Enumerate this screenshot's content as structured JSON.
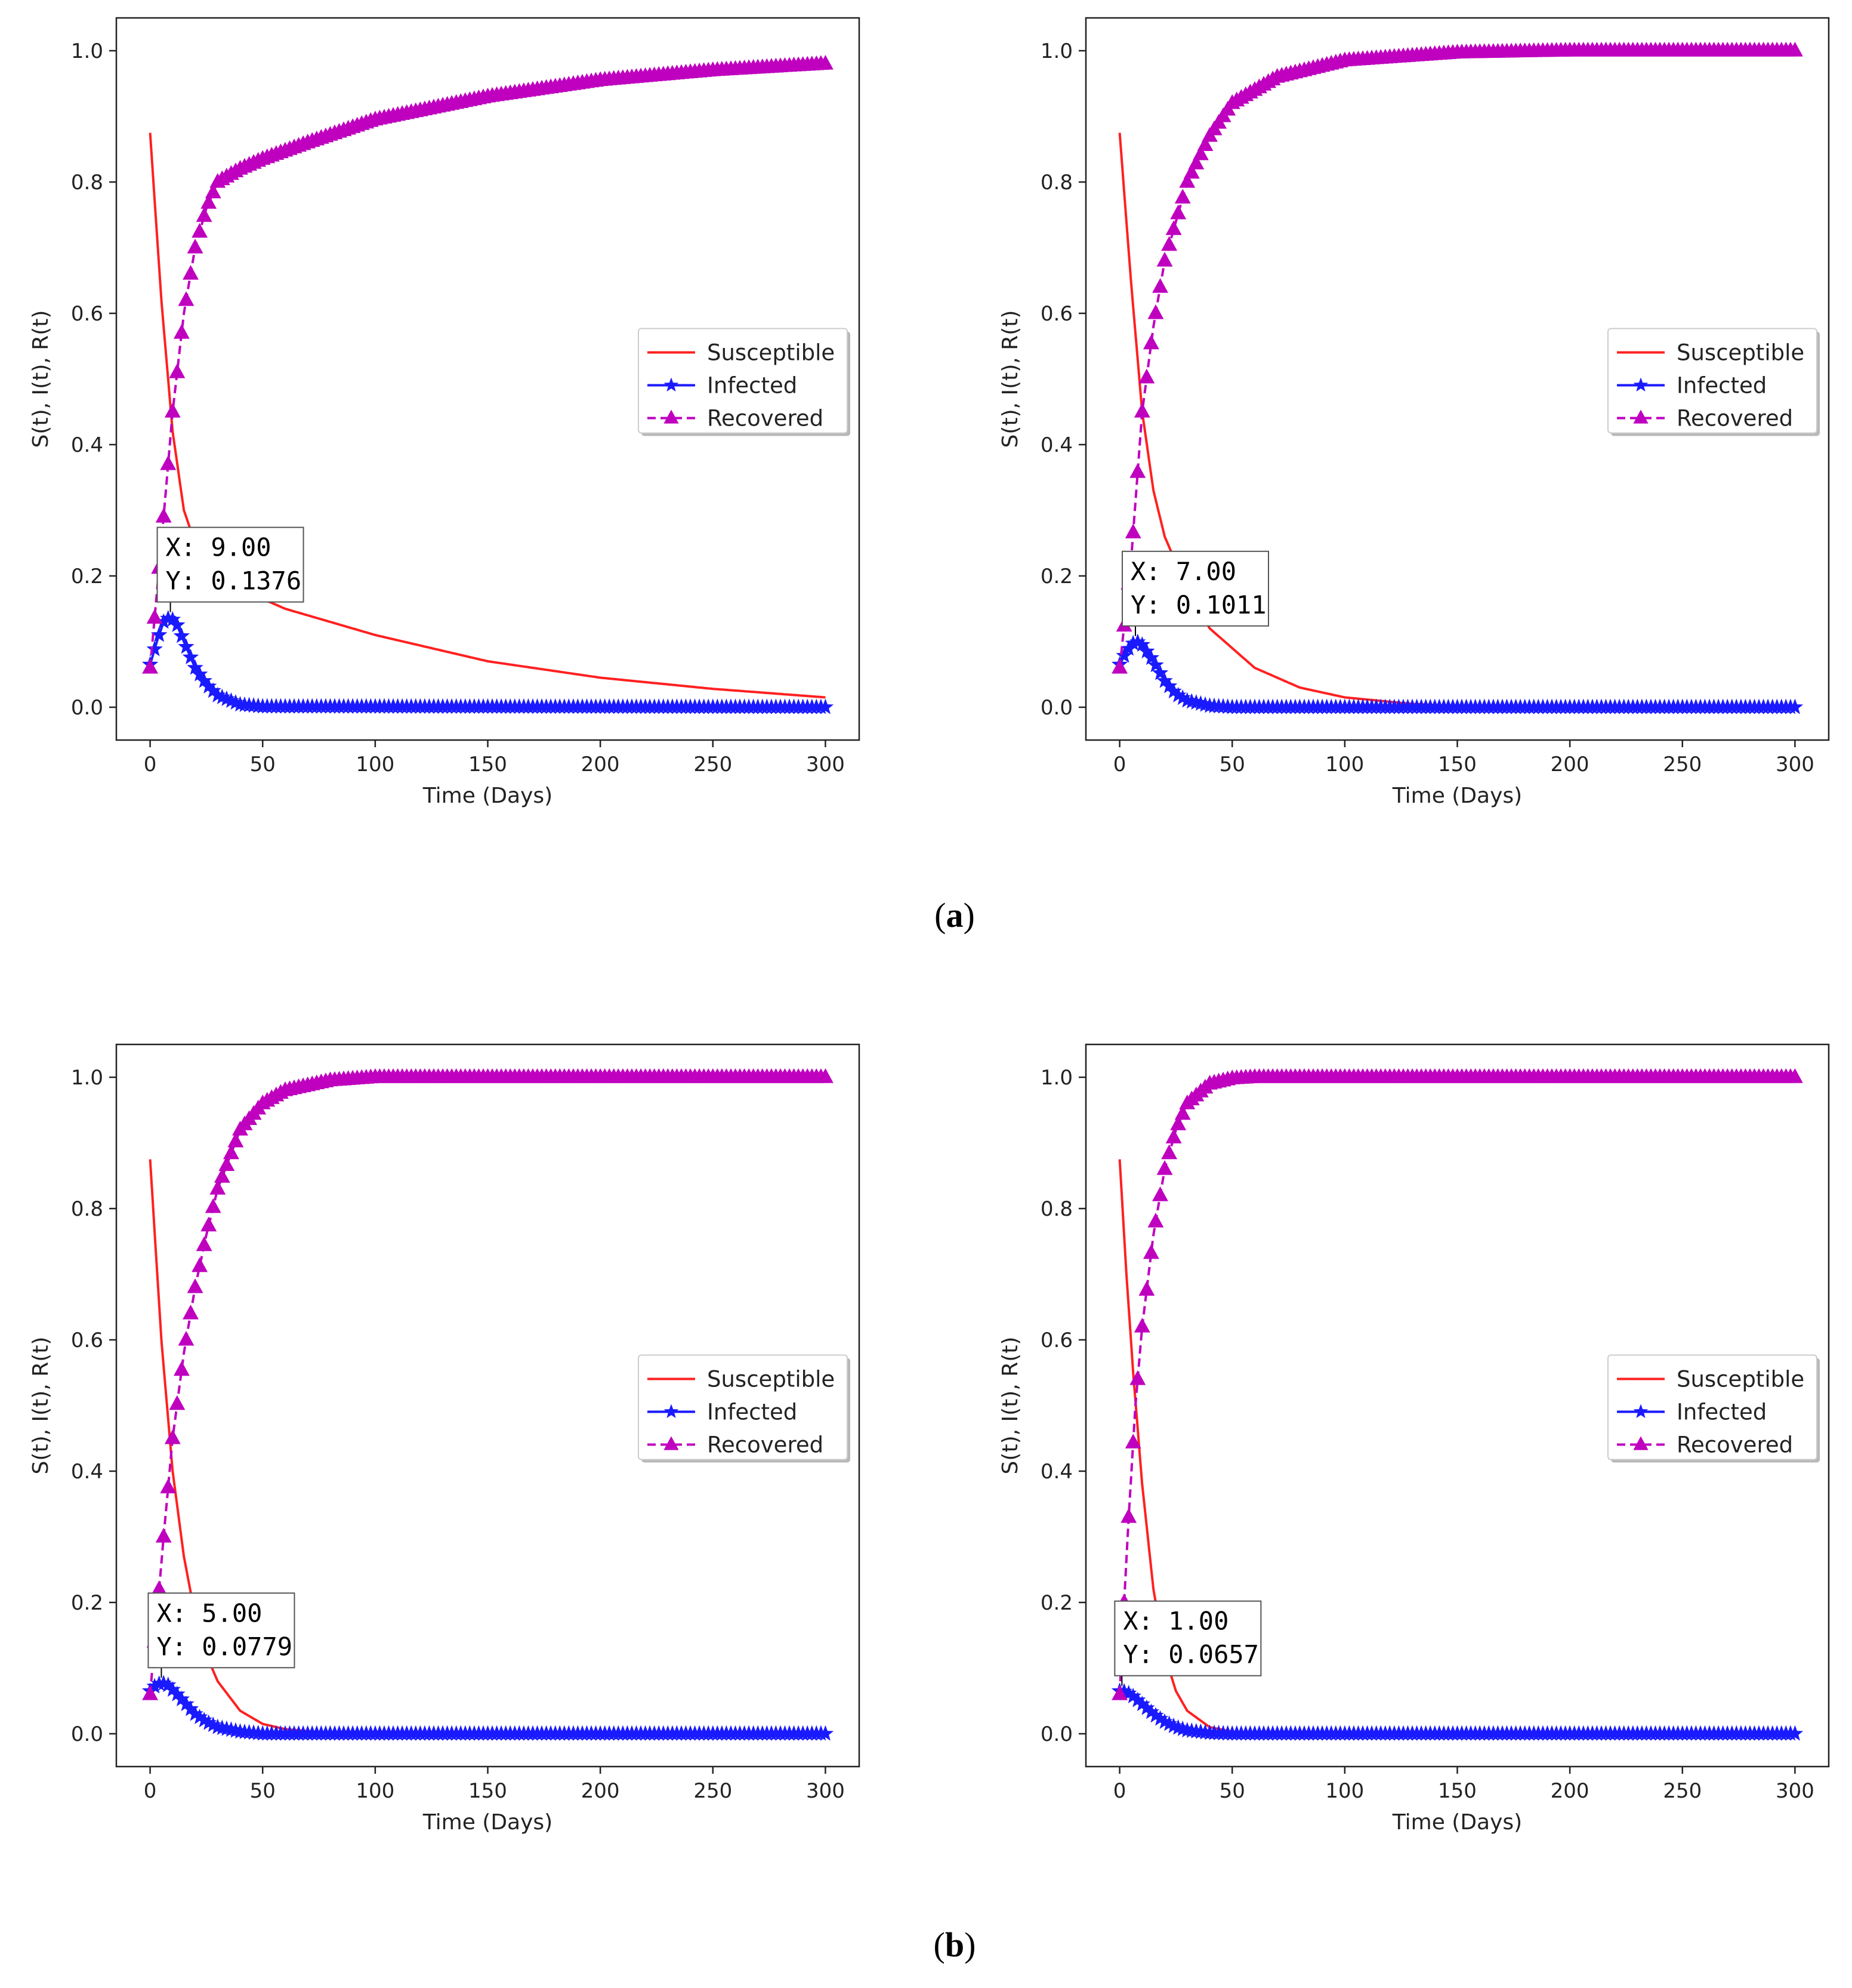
{
  "colors": {
    "susceptible": "#ff2020",
    "infected": "#1a1aff",
    "recovered": "#bf00bf",
    "axes": "#222222"
  },
  "captions": [
    {
      "open": "(",
      "letter": "a",
      "close": ")"
    },
    {
      "open": "(",
      "letter": "b",
      "close": ")"
    }
  ],
  "chart_data": [
    {
      "type": "line",
      "xlabel": "Time (Days)",
      "ylabel": "S(t), I(t), R(t)",
      "xlim": [
        -15,
        315
      ],
      "ylim": [
        -0.05,
        1.05
      ],
      "xticks": [
        0,
        50,
        100,
        150,
        200,
        250,
        300
      ],
      "yticks": [
        0.0,
        0.2,
        0.4,
        0.6,
        0.8,
        1.0
      ],
      "xtick_labels": [
        "0",
        "50",
        "100",
        "150",
        "200",
        "250",
        "300"
      ],
      "ytick_labels": [
        "0.0",
        "0.2",
        "0.4",
        "0.6",
        "0.8",
        "1.0"
      ],
      "legend": {
        "position": "center-right",
        "entries": [
          "Susceptible",
          "Infected",
          "Recovered"
        ]
      },
      "series": [
        {
          "name": "Susceptible",
          "style": "solid",
          "x": [
            0,
            5,
            10,
            15,
            20,
            30,
            40,
            60,
            80,
            100,
            150,
            200,
            250,
            300
          ],
          "y": [
            0.875,
            0.62,
            0.42,
            0.3,
            0.25,
            0.2,
            0.18,
            0.15,
            0.13,
            0.11,
            0.07,
            0.045,
            0.028,
            0.015
          ]
        },
        {
          "name": "Infected",
          "style": "star",
          "x": [
            0,
            3,
            6,
            9,
            12,
            15,
            20,
            25,
            30,
            40,
            50,
            300
          ],
          "y": [
            0.065,
            0.1,
            0.13,
            0.1376,
            0.125,
            0.1,
            0.06,
            0.035,
            0.018,
            0.004,
            0.001,
            0.0
          ]
        },
        {
          "name": "Recovered",
          "style": "triangle-dashed",
          "x": [
            0,
            5,
            10,
            15,
            20,
            25,
            30,
            40,
            50,
            70,
            100,
            150,
            200,
            250,
            300
          ],
          "y": [
            0.06,
            0.25,
            0.45,
            0.6,
            0.7,
            0.76,
            0.8,
            0.82,
            0.835,
            0.86,
            0.895,
            0.93,
            0.955,
            0.97,
            0.98
          ]
        }
      ],
      "annotation": {
        "x": 9,
        "y": 0.1376,
        "label_x": "X: 9.00",
        "label_y": "Y: 0.1376"
      }
    },
    {
      "type": "line",
      "xlabel": "Time (Days)",
      "ylabel": "S(t), I(t), R(t)",
      "xlim": [
        -15,
        315
      ],
      "ylim": [
        -0.05,
        1.05
      ],
      "xticks": [
        0,
        50,
        100,
        150,
        200,
        250,
        300
      ],
      "yticks": [
        0.0,
        0.2,
        0.4,
        0.6,
        0.8,
        1.0
      ],
      "xtick_labels": [
        "0",
        "50",
        "100",
        "150",
        "200",
        "250",
        "300"
      ],
      "ytick_labels": [
        "0.0",
        "0.2",
        "0.4",
        "0.6",
        "0.8",
        "1.0"
      ],
      "legend": {
        "position": "center-right",
        "entries": [
          "Susceptible",
          "Infected",
          "Recovered"
        ]
      },
      "series": [
        {
          "name": "Susceptible",
          "style": "solid",
          "x": [
            0,
            5,
            10,
            15,
            20,
            30,
            40,
            60,
            80,
            100,
            130,
            150,
            200,
            300
          ],
          "y": [
            0.875,
            0.65,
            0.45,
            0.33,
            0.26,
            0.18,
            0.12,
            0.06,
            0.03,
            0.015,
            0.005,
            0.002,
            0.0,
            0.0
          ]
        },
        {
          "name": "Infected",
          "style": "star",
          "x": [
            0,
            3,
            7,
            10,
            15,
            20,
            25,
            30,
            40,
            50,
            300
          ],
          "y": [
            0.065,
            0.085,
            0.1011,
            0.095,
            0.07,
            0.04,
            0.02,
            0.01,
            0.002,
            0.0,
            0.0
          ]
        },
        {
          "name": "Recovered",
          "style": "triangle-dashed",
          "x": [
            0,
            5,
            10,
            15,
            20,
            30,
            40,
            50,
            70,
            100,
            150,
            200,
            300
          ],
          "y": [
            0.06,
            0.22,
            0.45,
            0.58,
            0.68,
            0.8,
            0.87,
            0.92,
            0.96,
            0.985,
            0.997,
            1.0,
            1.0
          ]
        }
      ],
      "annotation": {
        "x": 7,
        "y": 0.1011,
        "label_x": "X: 7.00",
        "label_y": "Y: 0.1011"
      }
    },
    {
      "type": "line",
      "xlabel": "Time (Days)",
      "ylabel": "S(t), I(t), R(t)",
      "xlim": [
        -15,
        315
      ],
      "ylim": [
        -0.05,
        1.05
      ],
      "xticks": [
        0,
        50,
        100,
        150,
        200,
        250,
        300
      ],
      "yticks": [
        0.0,
        0.2,
        0.4,
        0.6,
        0.8,
        1.0
      ],
      "xtick_labels": [
        "0",
        "50",
        "100",
        "150",
        "200",
        "250",
        "300"
      ],
      "ytick_labels": [
        "0.0",
        "0.2",
        "0.4",
        "0.6",
        "0.8",
        "1.0"
      ],
      "legend": {
        "position": "center-right",
        "entries": [
          "Susceptible",
          "Infected",
          "Recovered"
        ]
      },
      "series": [
        {
          "name": "Susceptible",
          "style": "solid",
          "x": [
            0,
            5,
            10,
            15,
            20,
            25,
            30,
            40,
            50,
            60,
            80,
            100,
            300
          ],
          "y": [
            0.875,
            0.6,
            0.4,
            0.27,
            0.18,
            0.12,
            0.08,
            0.035,
            0.015,
            0.007,
            0.001,
            0.0,
            0.0
          ]
        },
        {
          "name": "Infected",
          "style": "star",
          "x": [
            0,
            2,
            5,
            8,
            12,
            16,
            20,
            25,
            30,
            40,
            50,
            300
          ],
          "y": [
            0.065,
            0.072,
            0.0779,
            0.074,
            0.06,
            0.045,
            0.03,
            0.018,
            0.01,
            0.003,
            0.0,
            0.0
          ]
        },
        {
          "name": "Recovered",
          "style": "triangle-dashed",
          "x": [
            0,
            3,
            6,
            10,
            15,
            20,
            25,
            30,
            40,
            50,
            60,
            80,
            100,
            300
          ],
          "y": [
            0.06,
            0.18,
            0.3,
            0.45,
            0.58,
            0.68,
            0.76,
            0.83,
            0.92,
            0.96,
            0.98,
            0.995,
            1.0,
            1.0
          ]
        }
      ],
      "annotation": {
        "x": 5,
        "y": 0.0779,
        "label_x": "X: 5.00",
        "label_y": "Y: 0.0779"
      }
    },
    {
      "type": "line",
      "xlabel": "Time (Days)",
      "ylabel": "S(t), I(t), R(t)",
      "xlim": [
        -15,
        315
      ],
      "ylim": [
        -0.05,
        1.05
      ],
      "xticks": [
        0,
        50,
        100,
        150,
        200,
        250,
        300
      ],
      "yticks": [
        0.0,
        0.2,
        0.4,
        0.6,
        0.8,
        1.0
      ],
      "xtick_labels": [
        "0",
        "50",
        "100",
        "150",
        "200",
        "250",
        "300"
      ],
      "ytick_labels": [
        "0.0",
        "0.2",
        "0.4",
        "0.6",
        "0.8",
        "1.0"
      ],
      "legend": {
        "position": "center-right",
        "entries": [
          "Susceptible",
          "Infected",
          "Recovered"
        ]
      },
      "series": [
        {
          "name": "Susceptible",
          "style": "solid",
          "x": [
            0,
            3,
            6,
            10,
            15,
            20,
            25,
            30,
            40,
            50,
            60,
            300
          ],
          "y": [
            0.875,
            0.7,
            0.55,
            0.38,
            0.22,
            0.12,
            0.065,
            0.035,
            0.01,
            0.003,
            0.0,
            0.0
          ]
        },
        {
          "name": "Infected",
          "style": "star",
          "x": [
            0,
            1,
            5,
            10,
            15,
            20,
            25,
            30,
            40,
            50,
            300
          ],
          "y": [
            0.065,
            0.0657,
            0.06,
            0.045,
            0.03,
            0.018,
            0.01,
            0.005,
            0.001,
            0.0,
            0.0
          ]
        },
        {
          "name": "Recovered",
          "style": "triangle-dashed",
          "x": [
            0,
            2,
            4,
            7,
            10,
            15,
            20,
            25,
            30,
            40,
            50,
            60,
            300
          ],
          "y": [
            0.06,
            0.2,
            0.33,
            0.5,
            0.62,
            0.76,
            0.86,
            0.92,
            0.96,
            0.99,
            0.998,
            1.0,
            1.0
          ]
        }
      ],
      "annotation": {
        "x": 1,
        "y": 0.0657,
        "label_x": "X: 1.00",
        "label_y": "Y: 0.0657"
      }
    }
  ]
}
